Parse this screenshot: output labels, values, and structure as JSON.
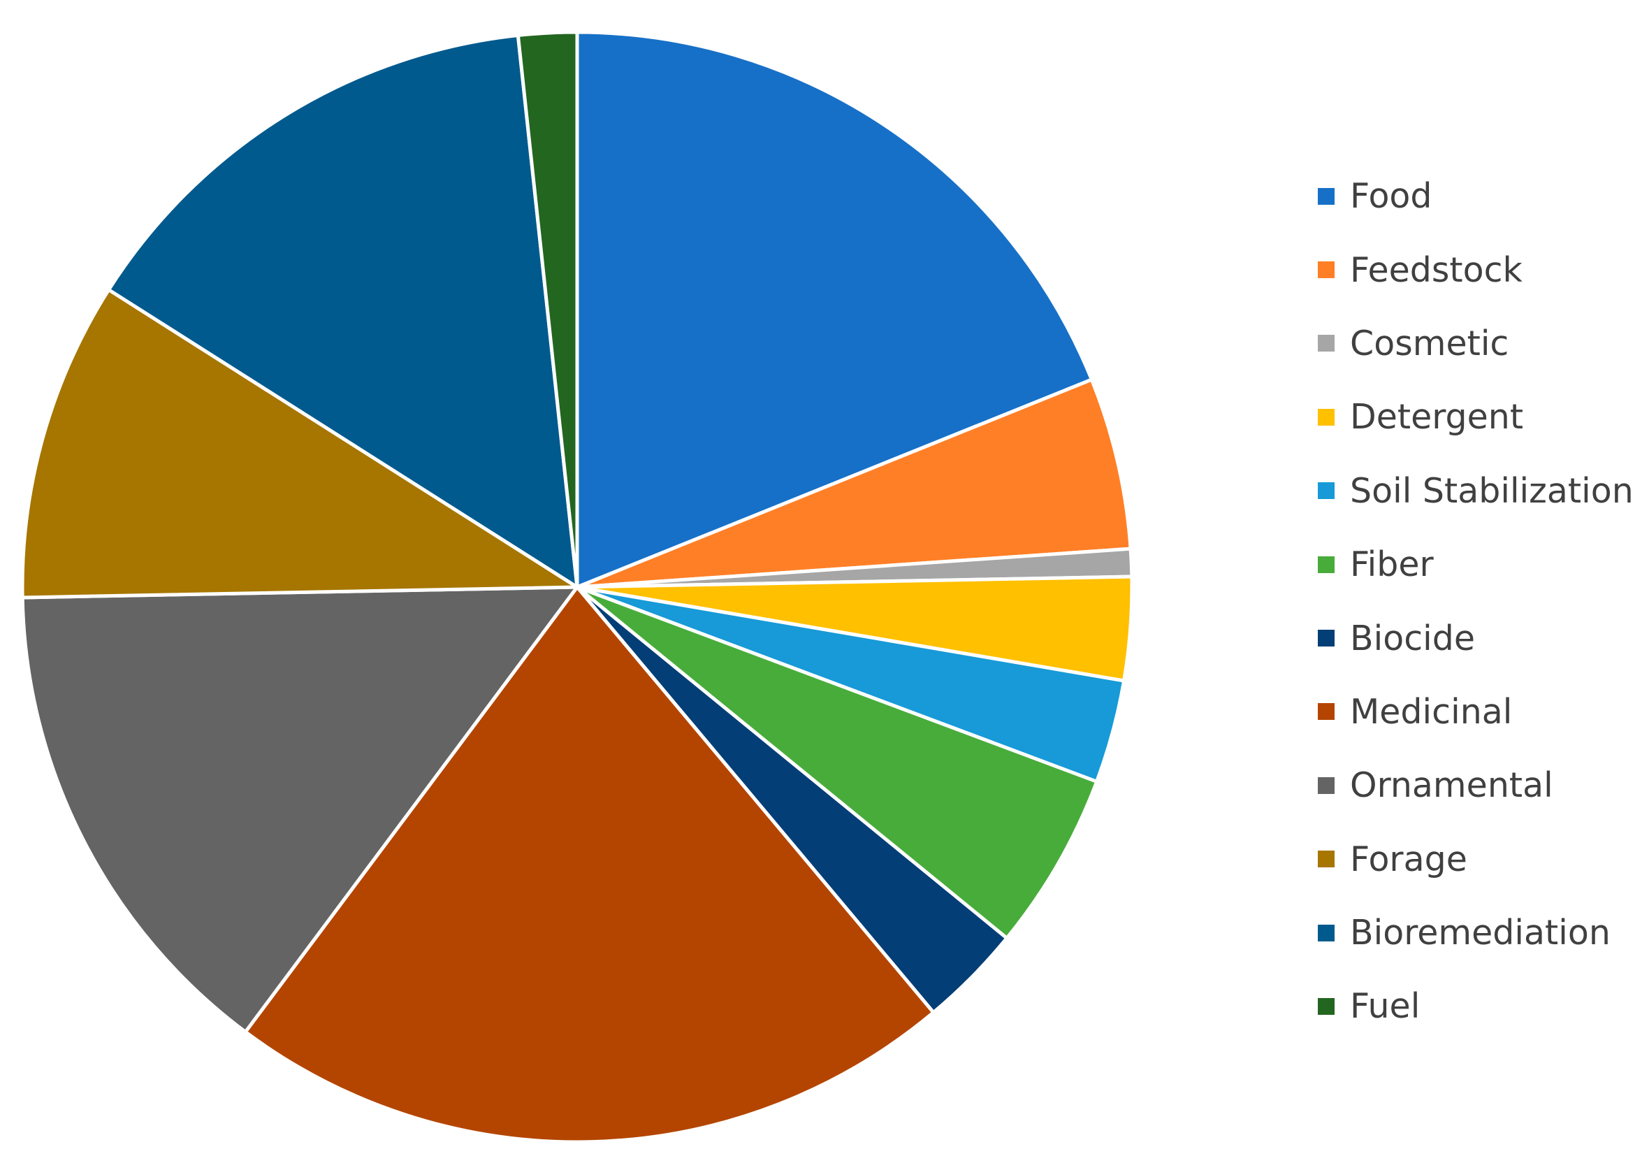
{
  "chart_data": {
    "type": "pie",
    "title": "",
    "legend_position": "right",
    "start_angle_deg": 0,
    "direction": "clockwise",
    "slices": [
      {
        "label": "Food",
        "value": 18.9,
        "color": "#1770C7"
      },
      {
        "label": "Feedstock",
        "value": 5.0,
        "color": "#FF7F27"
      },
      {
        "label": "Cosmetic",
        "value": 0.8,
        "color": "#A6A6A6"
      },
      {
        "label": "Detergent",
        "value": 3.0,
        "color": "#FFC000"
      },
      {
        "label": "Soil Stabilization",
        "value": 3.0,
        "color": "#179AD7"
      },
      {
        "label": "Fiber",
        "value": 5.2,
        "color": "#48AC3B"
      },
      {
        "label": "Biocide",
        "value": 3.0,
        "color": "#043E76"
      },
      {
        "label": "Medicinal",
        "value": 21.3,
        "color": "#B44500"
      },
      {
        "label": "Ornamental",
        "value": 14.5,
        "color": "#646464"
      },
      {
        "label": "Forage",
        "value": 9.3,
        "color": "#A67600"
      },
      {
        "label": "Bioremediation",
        "value": 14.3,
        "color": "#005A8E"
      },
      {
        "label": "Fuel",
        "value": 1.7,
        "color": "#236620"
      }
    ]
  }
}
